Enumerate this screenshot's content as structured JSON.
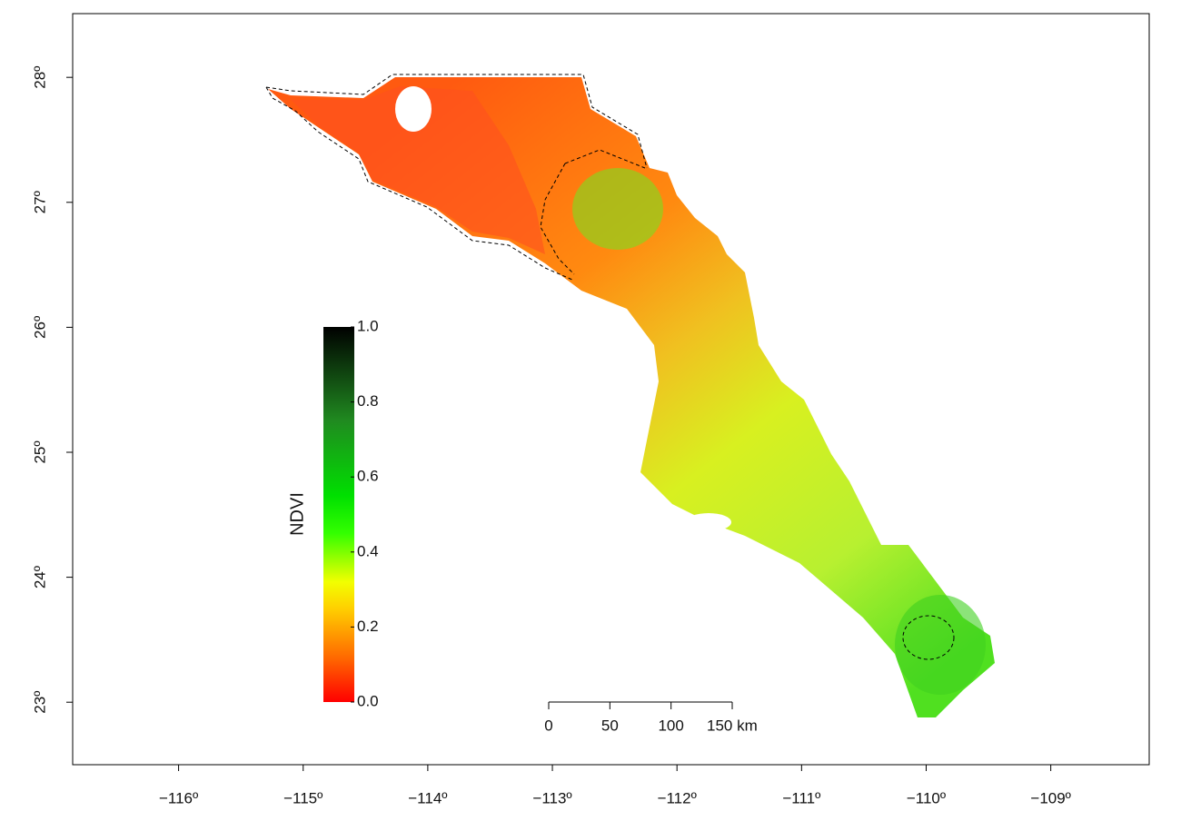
{
  "map": {
    "xlim": [
      -116.85,
      -108.21
    ],
    "ylim": [
      22.5,
      28.51
    ],
    "xticks": [
      {
        "value": -116,
        "label": "−116º"
      },
      {
        "value": -115,
        "label": "−115º"
      },
      {
        "value": -114,
        "label": "−114º"
      },
      {
        "value": -113,
        "label": "−113º"
      },
      {
        "value": -112,
        "label": "−112º"
      },
      {
        "value": -111,
        "label": "−111º"
      },
      {
        "value": -110,
        "label": "−110º"
      },
      {
        "value": -109,
        "label": "−109º"
      }
    ],
    "yticks": [
      {
        "value": 23,
        "label": "23º"
      },
      {
        "value": 24,
        "label": "24º"
      },
      {
        "value": 25,
        "label": "25º"
      },
      {
        "value": 26,
        "label": "26º"
      },
      {
        "value": 27,
        "label": "27º"
      },
      {
        "value": 28,
        "label": "28º"
      }
    ],
    "legend": {
      "title": "NDVI",
      "lim": [
        0,
        1
      ],
      "ticks": [
        {
          "value": 0,
          "label": "0.0"
        },
        0.2,
        0.4,
        0.6,
        0.8,
        {
          "value": 1,
          "label": "1.0"
        }
      ]
    },
    "scale_bar": {
      "ticks": [
        0,
        50,
        100,
        {
          "value": 150,
          "label": "150 km"
        }
      ]
    }
  }
}
